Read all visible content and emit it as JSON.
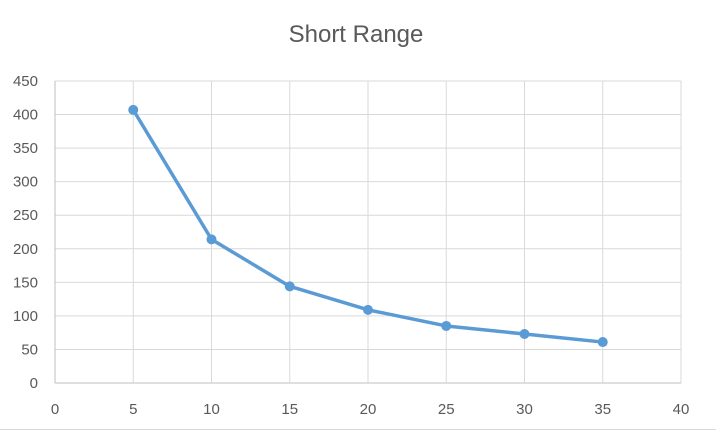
{
  "chart_data": {
    "type": "line",
    "title": "Short Range",
    "xlabel": "",
    "ylabel": "",
    "xlim": [
      0,
      40
    ],
    "ylim": [
      0,
      450
    ],
    "x_ticks": [
      "0",
      "5",
      "10",
      "15",
      "20",
      "25",
      "30",
      "35",
      "40"
    ],
    "y_ticks": [
      "0",
      "50",
      "100",
      "150",
      "200",
      "250",
      "300",
      "350",
      "400",
      "450"
    ],
    "grid": true,
    "legend": "none",
    "series": [
      {
        "color": "#5b9bd5",
        "x": [
          5,
          10,
          15,
          20,
          25,
          30,
          35
        ],
        "y": [
          407,
          214,
          144,
          109,
          85,
          73,
          61
        ]
      }
    ]
  }
}
